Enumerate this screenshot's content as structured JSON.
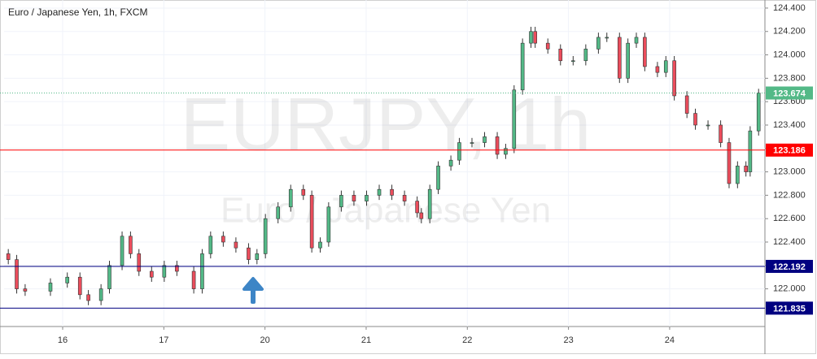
{
  "chart_data": {
    "type": "candlestick",
    "title": "Euro / Japanese Yen, 1h, FXCM",
    "watermark": "EURJPY, 1h",
    "watermark_subtitle": "Euro / Japanese Yen",
    "x": [
      0,
      2,
      4,
      10,
      14,
      17,
      19,
      22,
      24,
      27,
      29,
      31,
      34,
      37,
      40,
      44,
      46,
      48,
      51,
      54,
      57,
      59,
      61,
      64,
      67,
      70,
      72,
      74,
      76,
      79,
      82,
      85,
      88,
      91,
      94,
      97,
      98,
      100,
      102,
      105,
      107,
      110,
      113,
      116,
      118,
      120,
      122,
      124,
      125,
      128,
      131,
      134,
      137,
      140,
      142,
      145,
      147,
      149,
      151,
      154,
      156,
      158,
      161,
      163,
      166,
      169,
      171,
      173,
      175,
      176,
      178
    ],
    "open": [
      122.3,
      122.25,
      122.0,
      121.98,
      122.05,
      122.1,
      121.95,
      121.9,
      122.0,
      122.2,
      122.45,
      122.3,
      122.15,
      122.1,
      122.2,
      122.15,
      122.0,
      122.3,
      122.45,
      122.4,
      122.35,
      122.25,
      122.3,
      122.6,
      122.7,
      122.85,
      122.8,
      122.35,
      122.4,
      122.7,
      122.8,
      122.75,
      122.8,
      122.85,
      122.8,
      122.75,
      122.65,
      122.6,
      122.85,
      123.05,
      123.1,
      123.25,
      123.25,
      123.3,
      123.15,
      123.2,
      123.7,
      124.1,
      124.2,
      124.1,
      124.05,
      123.95,
      123.95,
      124.05,
      124.15,
      124.15,
      123.8,
      124.1,
      124.15,
      123.9,
      123.85,
      123.95,
      123.65,
      123.5,
      123.4,
      123.4,
      123.25,
      122.9,
      123.05,
      123.0,
      123.35
    ],
    "high": [
      122.34,
      122.29,
      122.04,
      122.09,
      122.14,
      122.14,
      121.99,
      122.04,
      122.24,
      122.49,
      122.49,
      122.34,
      122.19,
      122.24,
      122.24,
      122.19,
      122.34,
      122.49,
      122.49,
      122.44,
      122.39,
      122.34,
      122.64,
      122.74,
      122.89,
      122.89,
      122.84,
      122.44,
      122.74,
      122.84,
      122.84,
      122.84,
      122.89,
      122.89,
      122.84,
      122.79,
      122.69,
      122.89,
      123.09,
      123.14,
      123.29,
      123.29,
      123.34,
      123.34,
      123.24,
      123.74,
      124.14,
      124.24,
      124.24,
      124.14,
      124.09,
      123.99,
      124.09,
      124.19,
      124.19,
      124.19,
      124.14,
      124.19,
      124.19,
      123.94,
      123.99,
      123.99,
      123.69,
      123.54,
      123.44,
      123.44,
      123.29,
      123.09,
      123.09,
      123.39,
      123.71
    ],
    "low": [
      122.21,
      121.96,
      121.94,
      121.94,
      122.01,
      121.91,
      121.86,
      121.86,
      121.96,
      122.16,
      122.26,
      122.11,
      122.06,
      122.06,
      122.11,
      121.96,
      121.96,
      122.26,
      122.36,
      122.31,
      122.21,
      122.21,
      122.26,
      122.56,
      122.66,
      122.76,
      122.31,
      122.31,
      122.36,
      122.66,
      122.71,
      122.71,
      122.76,
      122.76,
      122.71,
      122.61,
      122.56,
      122.56,
      122.81,
      123.01,
      123.06,
      123.21,
      123.21,
      123.11,
      123.11,
      123.16,
      123.66,
      124.06,
      124.06,
      124.01,
      123.91,
      123.91,
      123.91,
      124.01,
      124.11,
      123.76,
      123.76,
      124.06,
      123.86,
      123.81,
      123.81,
      123.61,
      123.46,
      123.36,
      123.36,
      123.21,
      122.86,
      122.86,
      122.96,
      122.96,
      123.31
    ],
    "close": [
      122.25,
      122.0,
      121.98,
      122.05,
      122.1,
      121.95,
      121.9,
      122.0,
      122.2,
      122.45,
      122.3,
      122.15,
      122.1,
      122.2,
      122.15,
      122.0,
      122.3,
      122.45,
      122.4,
      122.35,
      122.25,
      122.3,
      122.6,
      122.7,
      122.85,
      122.8,
      122.35,
      122.4,
      122.7,
      122.8,
      122.75,
      122.8,
      122.85,
      122.8,
      122.75,
      122.65,
      122.6,
      122.85,
      123.05,
      123.1,
      123.25,
      123.25,
      123.3,
      123.15,
      123.2,
      123.7,
      124.1,
      124.2,
      124.1,
      124.05,
      123.95,
      123.95,
      124.05,
      124.15,
      124.15,
      123.8,
      124.1,
      124.15,
      123.9,
      123.85,
      123.95,
      123.65,
      123.5,
      123.4,
      123.4,
      123.25,
      122.9,
      123.05,
      123.0,
      123.35,
      123.674
    ],
    "up_color": "#53b987",
    "down_color": "#eb4d5c",
    "xlim": [
      -1,
      179.5
    ],
    "xticks": [
      {
        "value": 12.9,
        "label": "16"
      },
      {
        "value": 36.9,
        "label": "17"
      },
      {
        "value": 60.9,
        "label": "20"
      },
      {
        "value": 84.9,
        "label": "21"
      },
      {
        "value": 108.9,
        "label": "22"
      },
      {
        "value": 132.9,
        "label": "23"
      },
      {
        "value": 156.9,
        "label": "24"
      }
    ],
    "ylim": [
      121.678,
      124.469
    ],
    "yticks": [
      {
        "value": 122.0,
        "label": "122.000"
      },
      {
        "value": 122.2,
        "label": "122.200"
      },
      {
        "value": 122.4,
        "label": "122.400"
      },
      {
        "value": 122.6,
        "label": "122.600"
      },
      {
        "value": 122.8,
        "label": "122.800"
      },
      {
        "value": 123.0,
        "label": "123.000"
      },
      {
        "value": 123.2,
        "label": "123.200"
      },
      {
        "value": 123.4,
        "label": "123.400"
      },
      {
        "value": 123.6,
        "label": "123.600"
      },
      {
        "value": 123.8,
        "label": "123.800"
      },
      {
        "value": 124.0,
        "label": "124.000"
      },
      {
        "value": 124.2,
        "label": "124.200"
      },
      {
        "value": 124.4,
        "label": "124.400"
      }
    ],
    "grid": true,
    "levels": [
      {
        "value": 123.674,
        "color": "#53b987",
        "style": "dotted"
      },
      {
        "value": 123.186,
        "color": "#ff0000",
        "style": "solid"
      },
      {
        "value": 122.192,
        "color": "#000080",
        "style": "solid"
      },
      {
        "value": 121.835,
        "color": "#000080",
        "style": "solid"
      }
    ]
  }
}
